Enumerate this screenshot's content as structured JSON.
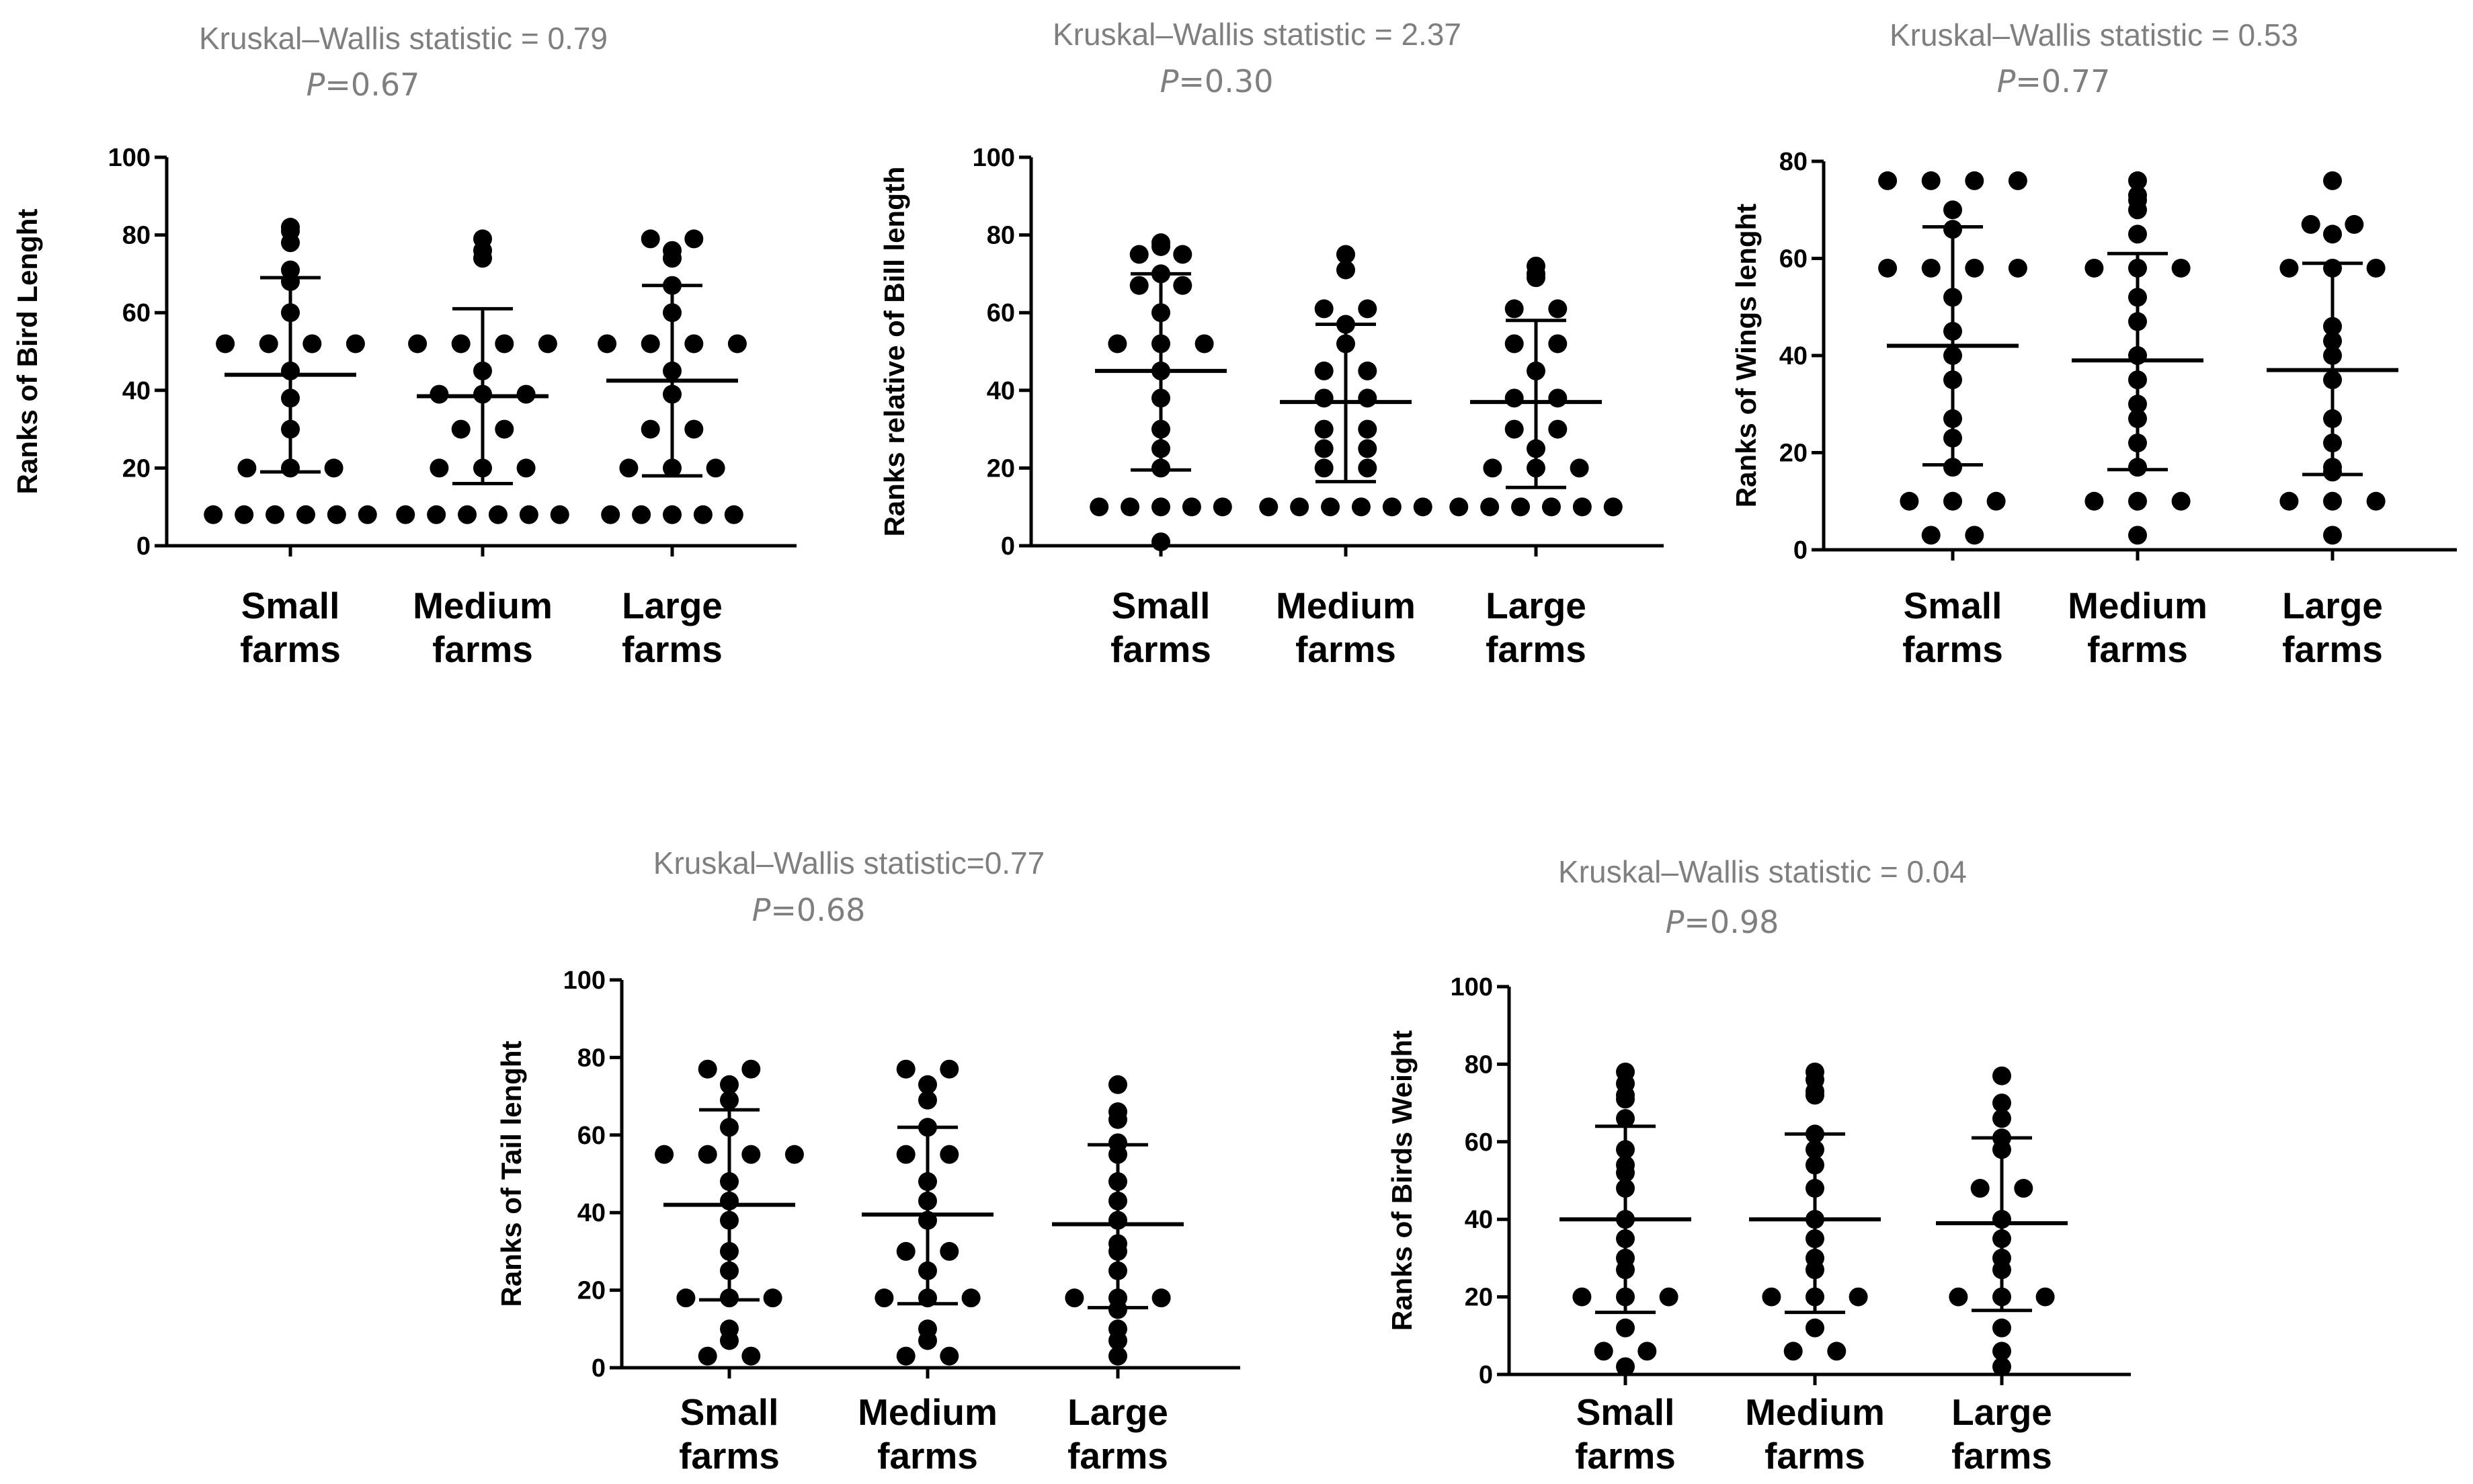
{
  "chart_data": [
    {
      "type": "scatter",
      "stat_title": "Kruskal–Wallis statistic = 0.79",
      "p_symbol": "P",
      "p_value": "=0.67",
      "ylabel": "Ranks of Bird Lenght",
      "ylim": [
        0,
        100
      ],
      "yticks": [
        0,
        20,
        40,
        60,
        80,
        100
      ],
      "categories": [
        [
          "Small",
          "farms"
        ],
        [
          "Medium",
          "farms"
        ],
        [
          "Large",
          "farms"
        ]
      ],
      "groups": [
        {
          "mean": 44,
          "sd_low": 19,
          "sd_high": 69,
          "values": [
            82,
            81,
            78,
            71,
            68,
            60,
            52,
            52,
            52,
            52,
            45,
            38,
            30,
            20,
            20,
            20,
            8,
            8,
            8,
            8,
            8,
            8
          ]
        },
        {
          "mean": 38.5,
          "sd_low": 16,
          "sd_high": 61,
          "values": [
            79,
            76,
            74,
            52,
            52,
            52,
            52,
            45,
            39,
            39,
            39,
            30,
            30,
            20,
            20,
            20,
            8,
            8,
            8,
            8,
            8,
            8
          ]
        },
        {
          "mean": 42.5,
          "sd_low": 18,
          "sd_high": 67,
          "values": [
            79,
            79,
            76,
            74,
            67,
            60,
            52,
            52,
            52,
            52,
            45,
            39,
            30,
            30,
            20,
            20,
            20,
            8,
            8,
            8,
            8,
            8
          ]
        }
      ]
    },
    {
      "type": "scatter",
      "stat_title": "Kruskal–Wallis statistic = 2.37",
      "p_symbol": "P",
      "p_value": "=0.30",
      "ylabel": "Ranks relative of Bill length",
      "ylim": [
        0,
        100
      ],
      "yticks": [
        0,
        20,
        40,
        60,
        80,
        100
      ],
      "categories": [
        [
          "Small",
          "farms"
        ],
        [
          "Medium",
          "farms"
        ],
        [
          "Large",
          "farms"
        ]
      ],
      "groups": [
        {
          "mean": 45,
          "sd_low": 19.5,
          "sd_high": 70,
          "values": [
            78,
            77,
            75,
            75,
            70,
            67,
            67,
            60,
            52,
            52,
            52,
            45,
            38,
            30,
            25,
            20,
            10,
            10,
            10,
            10,
            10,
            1
          ]
        },
        {
          "mean": 37,
          "sd_low": 16.5,
          "sd_high": 57,
          "values": [
            75,
            71,
            61,
            61,
            57,
            52,
            45,
            45,
            38,
            38,
            30,
            30,
            25,
            25,
            20,
            20,
            10,
            10,
            10,
            10,
            10,
            10
          ]
        },
        {
          "mean": 37,
          "sd_low": 15,
          "sd_high": 58,
          "values": [
            72,
            70,
            69,
            61,
            61,
            52,
            52,
            45,
            38,
            38,
            30,
            30,
            25,
            20,
            20,
            20,
            10,
            10,
            10,
            10,
            10,
            10
          ]
        }
      ]
    },
    {
      "type": "scatter",
      "stat_title": "Kruskal–Wallis statistic = 0.53",
      "p_symbol": "P",
      "p_value": "=0.77",
      "ylabel": "Ranks of Wings lenght",
      "ylim": [
        0,
        80
      ],
      "yticks": [
        0,
        20,
        40,
        60,
        80
      ],
      "categories": [
        [
          "Small",
          "farms"
        ],
        [
          "Medium",
          "farms"
        ],
        [
          "Large",
          "farms"
        ]
      ],
      "groups": [
        {
          "mean": 42,
          "sd_low": 17.5,
          "sd_high": 66.5,
          "values": [
            76,
            76,
            76,
            76,
            70,
            66,
            58,
            58,
            58,
            58,
            52,
            45,
            40,
            35,
            27,
            23,
            17,
            10,
            10,
            10,
            3,
            3
          ]
        },
        {
          "mean": 39,
          "sd_low": 16.5,
          "sd_high": 61,
          "values": [
            76,
            73,
            72,
            70,
            65,
            58,
            58,
            58,
            52,
            47,
            40,
            35,
            30,
            27,
            22,
            17,
            10,
            10,
            10,
            3
          ]
        },
        {
          "mean": 37,
          "sd_low": 15.5,
          "sd_high": 59,
          "values": [
            76,
            67,
            67,
            65,
            58,
            58,
            58,
            46,
            43,
            40,
            35,
            27,
            22,
            17,
            16,
            10,
            10,
            10,
            3
          ]
        }
      ]
    },
    {
      "type": "scatter",
      "stat_title": "Kruskal–Wallis statistic=0.77",
      "p_symbol": "P",
      "p_value": "=0.68",
      "ylabel": "Ranks of Tail lenght",
      "ylim": [
        0,
        100
      ],
      "yticks": [
        0,
        20,
        40,
        60,
        80,
        100
      ],
      "categories": [
        [
          "Small",
          "farms"
        ],
        [
          "Medium",
          "farms"
        ],
        [
          "Large",
          "farms"
        ]
      ],
      "groups": [
        {
          "mean": 42,
          "sd_low": 17.5,
          "sd_high": 66.5,
          "values": [
            77,
            77,
            73,
            69,
            62,
            55,
            55,
            55,
            55,
            48,
            43,
            38,
            30,
            25,
            18,
            18,
            18,
            10,
            7,
            3,
            3
          ]
        },
        {
          "mean": 39.5,
          "sd_low": 16.5,
          "sd_high": 62,
          "values": [
            77,
            77,
            73,
            69,
            62,
            55,
            55,
            48,
            43,
            38,
            30,
            30,
            25,
            18,
            18,
            18,
            10,
            7,
            3,
            3
          ]
        },
        {
          "mean": 37,
          "sd_low": 15.5,
          "sd_high": 57.5,
          "values": [
            73,
            66,
            64,
            58,
            55,
            48,
            43,
            38,
            32,
            30,
            25,
            18,
            18,
            18,
            15,
            10,
            7,
            3
          ]
        }
      ]
    },
    {
      "type": "scatter",
      "stat_title": "Kruskal–Wallis statistic = 0.04",
      "p_symbol": "P",
      "p_value": "=0.98",
      "ylabel": "Ranks of Birds Weight",
      "ylim": [
        0,
        100
      ],
      "yticks": [
        0,
        20,
        40,
        60,
        80,
        100
      ],
      "categories": [
        [
          "Small",
          "farms"
        ],
        [
          "Medium",
          "farms"
        ],
        [
          "Large",
          "farms"
        ]
      ],
      "groups": [
        {
          "mean": 40,
          "sd_low": 16,
          "sd_high": 64,
          "values": [
            78,
            75,
            72,
            71,
            66,
            58,
            54,
            52,
            48,
            40,
            35,
            30,
            27,
            20,
            20,
            20,
            12,
            6,
            6,
            2
          ]
        },
        {
          "mean": 40,
          "sd_low": 16,
          "sd_high": 62,
          "values": [
            78,
            76,
            73,
            72,
            62,
            58,
            54,
            48,
            40,
            35,
            30,
            27,
            20,
            20,
            20,
            12,
            6,
            6
          ]
        },
        {
          "mean": 39,
          "sd_low": 16.5,
          "sd_high": 61,
          "values": [
            77,
            70,
            66,
            61,
            58,
            48,
            48,
            40,
            35,
            30,
            27,
            20,
            20,
            20,
            12,
            6,
            2
          ]
        }
      ]
    }
  ]
}
